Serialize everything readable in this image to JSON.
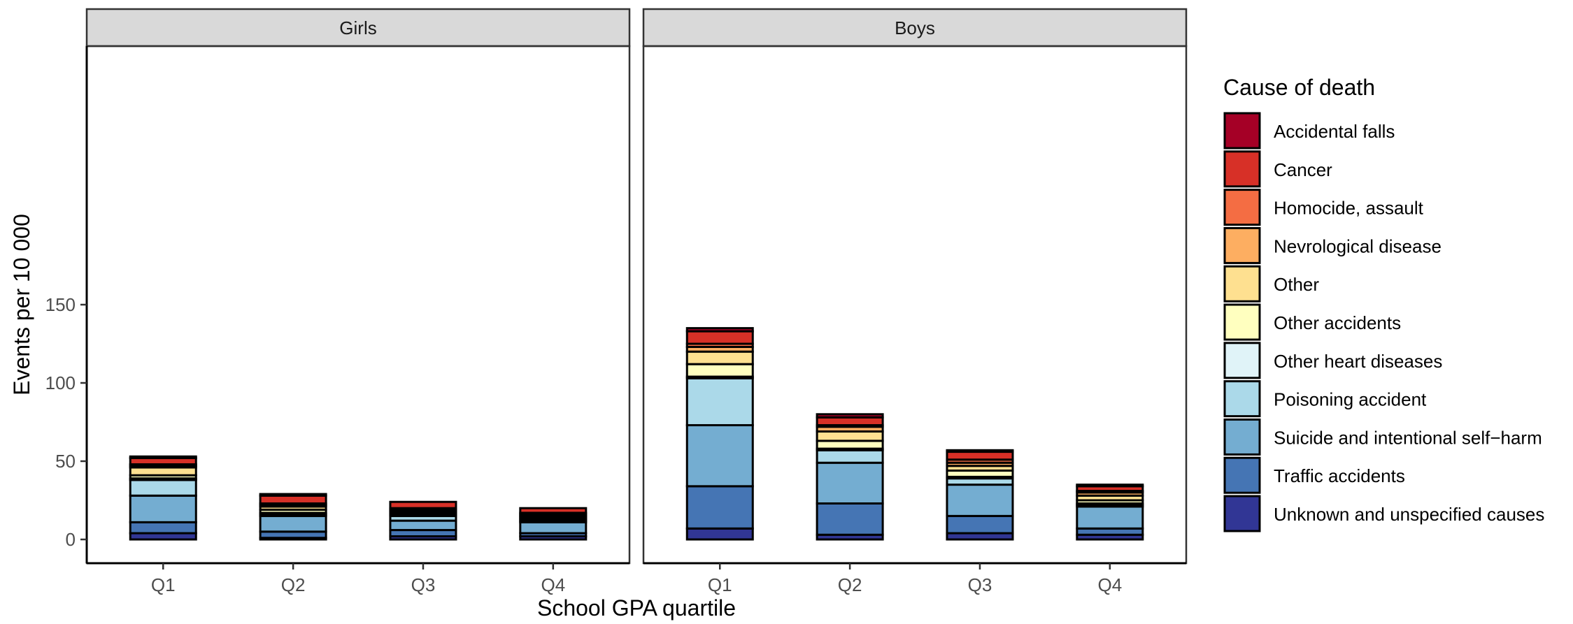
{
  "chart_data": {
    "type": "bar",
    "stacked": true,
    "xlabel": "School GPA quartile",
    "ylabel": "Events per 10 000",
    "ylim": [
      0,
      160
    ],
    "yticks": [
      0,
      50,
      100,
      150
    ],
    "categories": [
      "Q1",
      "Q2",
      "Q3",
      "Q4"
    ],
    "legend_title": "Cause of death",
    "legend_position": "right",
    "legend": [
      {
        "name": "Accidental falls",
        "color": "#a50026"
      },
      {
        "name": "Cancer",
        "color": "#d73027"
      },
      {
        "name": "Homocide, assault",
        "color": "#f46d43"
      },
      {
        "name": "Nevrological disease",
        "color": "#fdae61"
      },
      {
        "name": "Other",
        "color": "#fee090"
      },
      {
        "name": "Other accidents",
        "color": "#ffffbf"
      },
      {
        "name": "Other heart diseases",
        "color": "#e0f3f8"
      },
      {
        "name": "Poisoning accident",
        "color": "#abd9e9"
      },
      {
        "name": "Suicide and intentional self−harm",
        "color": "#74add1"
      },
      {
        "name": "Traffic accidents",
        "color": "#4575b4"
      },
      {
        "name": "Unknown and unspecified causes",
        "color": "#313695"
      }
    ],
    "panels": [
      {
        "name": "Girls",
        "series": [
          {
            "name": "Unknown and unspecified causes",
            "values": [
              4,
              1,
              2,
              2
            ]
          },
          {
            "name": "Traffic accidents",
            "values": [
              7,
              4,
              4,
              2
            ]
          },
          {
            "name": "Suicide and intentional self−harm",
            "values": [
              17,
              10,
              6,
              7
            ]
          },
          {
            "name": "Poisoning accident",
            "values": [
              10,
              1,
              3,
              1
            ]
          },
          {
            "name": "Other heart diseases",
            "values": [
              1,
              1,
              1,
              1
            ]
          },
          {
            "name": "Other accidents",
            "values": [
              2,
              2,
              1,
              1
            ]
          },
          {
            "name": "Other",
            "values": [
              5,
              2,
              1,
              1
            ]
          },
          {
            "name": "Nevrological disease",
            "values": [
              1,
              1,
              1,
              1
            ]
          },
          {
            "name": "Homocide, assault",
            "values": [
              1,
              1,
              1,
              1
            ]
          },
          {
            "name": "Cancer",
            "values": [
              4,
              5,
              4,
              3
            ]
          },
          {
            "name": "Accidental falls",
            "values": [
              1,
              1,
              0,
              0
            ]
          }
        ]
      },
      {
        "name": "Boys",
        "series": [
          {
            "name": "Unknown and unspecified causes",
            "values": [
              7,
              3,
              4,
              3
            ]
          },
          {
            "name": "Traffic accidents",
            "values": [
              27,
              20,
              11,
              4
            ]
          },
          {
            "name": "Suicide and intentional self−harm",
            "values": [
              39,
              26,
              20,
              14
            ]
          },
          {
            "name": "Poisoning accident",
            "values": [
              30,
              8,
              4,
              1
            ]
          },
          {
            "name": "Other heart diseases",
            "values": [
              1,
              1,
              1,
              1
            ]
          },
          {
            "name": "Other accidents",
            "values": [
              8,
              5,
              4,
              2
            ]
          },
          {
            "name": "Other",
            "values": [
              8,
              6,
              3,
              3
            ]
          },
          {
            "name": "Nevrological disease",
            "values": [
              3,
              3,
              2,
              2
            ]
          },
          {
            "name": "Homocide, assault",
            "values": [
              2,
              1,
              2,
              1
            ]
          },
          {
            "name": "Cancer",
            "values": [
              8,
              5,
              5,
              3
            ]
          },
          {
            "name": "Accidental falls",
            "values": [
              2,
              2,
              1,
              1
            ]
          }
        ]
      }
    ]
  }
}
